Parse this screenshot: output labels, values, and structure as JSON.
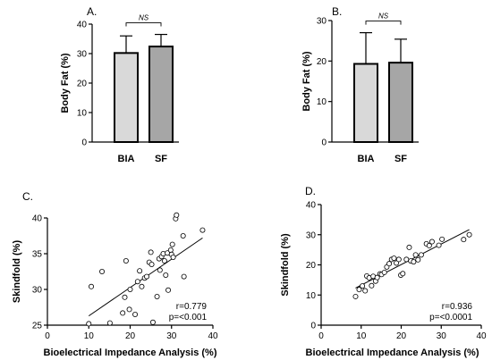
{
  "chart_data": [
    {
      "panel": "A.",
      "type": "bar",
      "ylabel": "Body Fat (%)",
      "ylim": [
        0,
        40
      ],
      "yticks": [
        "0",
        "10",
        "20",
        "30",
        "40"
      ],
      "categories": [
        "BIA",
        "SF"
      ],
      "values": [
        30.2,
        32.4
      ],
      "error_upper": [
        36.0,
        36.5
      ],
      "colors": [
        "#d9d9d9",
        "#a6a6a6"
      ],
      "annotation": "NS"
    },
    {
      "panel": "B.",
      "type": "bar",
      "ylabel": "Body Fat (%)",
      "ylim": [
        0,
        30
      ],
      "yticks": [
        "0",
        "10",
        "20",
        "30"
      ],
      "categories": [
        "BIA",
        "SF"
      ],
      "values": [
        19.3,
        19.6
      ],
      "error_upper": [
        27.0,
        25.4
      ],
      "colors": [
        "#d9d9d9",
        "#a6a6a6"
      ],
      "annotation": "NS"
    },
    {
      "panel": "C.",
      "type": "scatter",
      "xlabel": "Bioelectrical Impedance Analysis (%)",
      "ylabel": "Skindfold (%)",
      "xlim": [
        0,
        40
      ],
      "ylim": [
        25,
        40
      ],
      "xticks": [
        "0",
        "10",
        "20",
        "30",
        "40"
      ],
      "yticks": [
        "25",
        "30",
        "35",
        "40"
      ],
      "x": [
        10,
        10.6,
        13.2,
        15.1,
        18.2,
        18.7,
        19.0,
        19.8,
        20.0,
        21.2,
        21.8,
        22.3,
        22.8,
        23.5,
        24.0,
        24.6,
        25.0,
        25.2,
        25.5,
        26.5,
        27.0,
        27.2,
        27.6,
        28.0,
        28.3,
        28.6,
        29.0,
        29.2,
        29.8,
        30.0,
        30.2,
        30.4,
        31.0,
        31.2,
        32.8,
        33.0,
        37.5
      ],
      "y": [
        25.2,
        30.4,
        32.5,
        25.3,
        26.7,
        28.9,
        34.0,
        27.2,
        30.0,
        26.5,
        31.1,
        32.6,
        30.4,
        31.6,
        31.8,
        33.8,
        35.2,
        33.5,
        25.4,
        29.0,
        34.3,
        32.7,
        34.6,
        35.0,
        34.0,
        32.0,
        35.1,
        29.9,
        35.5,
        34.9,
        36.3,
        34.5,
        39.9,
        40.4,
        37.5,
        31.8,
        38.3
      ],
      "fit": {
        "x": [
          10,
          37.5
        ],
        "y": [
          26.3,
          37.2
        ]
      },
      "annotation": [
        "r=0.779",
        "p=<0.001"
      ]
    },
    {
      "panel": "D.",
      "type": "scatter",
      "xlabel": "Bioelectrical Impedance Analysis (%)",
      "ylabel": "Skindfold (%)",
      "xlim": [
        0,
        40
      ],
      "ylim": [
        0,
        40
      ],
      "xticks": [
        "0",
        "10",
        "20",
        "30",
        "40"
      ],
      "yticks": [
        "0",
        "10",
        "20",
        "30",
        "40"
      ],
      "x": [
        8.6,
        9.5,
        10.3,
        11.0,
        11.4,
        12.0,
        12.6,
        13.0,
        13.6,
        14.0,
        14.7,
        15.1,
        15.8,
        16.4,
        17.0,
        17.6,
        18.2,
        18.8,
        19.4,
        19.9,
        20.4,
        21.3,
        22.0,
        22.4,
        23.1,
        23.6,
        24.2,
        25.0,
        26.3,
        27.0,
        27.7,
        29.4,
        30.2,
        35.6,
        37.0
      ],
      "y": [
        9.5,
        11.8,
        13.0,
        11.4,
        16.3,
        15.7,
        13.1,
        16.2,
        14.6,
        15.8,
        17.0,
        16.8,
        17.5,
        19.3,
        20.4,
        21.8,
        22.2,
        20.6,
        21.8,
        16.6,
        17.1,
        21.8,
        25.8,
        21.3,
        21.0,
        23.3,
        21.7,
        23.3,
        27.0,
        26.4,
        27.7,
        26.5,
        28.5,
        28.4,
        30.0
      ],
      "fit": {
        "x": [
          8.6,
          37.0
        ],
        "y": [
          12.3,
          31.7
        ]
      },
      "annotation": [
        "r=0.936",
        "p=<0.0001"
      ]
    }
  ]
}
